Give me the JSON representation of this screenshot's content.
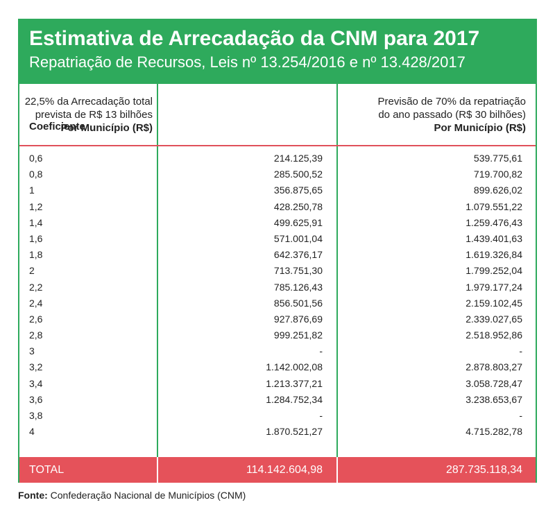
{
  "header": {
    "title": "Estimativa de Arrecadação da CNM para 2017",
    "subtitle": "Repatriação de Recursos, Leis nº 13.254/2016 e nº 13.428/2017"
  },
  "columns": {
    "coef": "Coeficiente",
    "col1_line1": "22,5% da Arrecadação total",
    "col1_line2": "prevista de R$ 13 bilhões",
    "col1_line3": "Por Município (R$)",
    "col2_line1": "Previsão de 70% da repatriação",
    "col2_line2": "do ano passado (R$ 30 bilhões)",
    "col2_line3": "Por Município (R$)"
  },
  "rows": [
    {
      "coef": "0,6",
      "v1": "214.125,39",
      "v2": "539.775,61"
    },
    {
      "coef": "0,8",
      "v1": "285.500,52",
      "v2": "719.700,82"
    },
    {
      "coef": "1",
      "v1": "356.875,65",
      "v2": "899.626,02"
    },
    {
      "coef": "1,2",
      "v1": "428.250,78",
      "v2": "1.079.551,22"
    },
    {
      "coef": "1,4",
      "v1": "499.625,91",
      "v2": "1.259.476,43"
    },
    {
      "coef": "1,6",
      "v1": "571.001,04",
      "v2": "1.439.401,63"
    },
    {
      "coef": "1,8",
      "v1": "642.376,17",
      "v2": "1.619.326,84"
    },
    {
      "coef": "2",
      "v1": "713.751,30",
      "v2": "1.799.252,04"
    },
    {
      "coef": "2,2",
      "v1": "785.126,43",
      "v2": "1.979.177,24"
    },
    {
      "coef": "2,4",
      "v1": "856.501,56",
      "v2": "2.159.102,45"
    },
    {
      "coef": "2,6",
      "v1": "927.876,69",
      "v2": "2.339.027,65"
    },
    {
      "coef": "2,8",
      "v1": "999.251,82",
      "v2": "2.518.952,86"
    },
    {
      "coef": "3",
      "v1": "-",
      "v2": "-"
    },
    {
      "coef": "3,2",
      "v1": "1.142.002,08",
      "v2": "2.878.803,27"
    },
    {
      "coef": "3,4",
      "v1": "1.213.377,21",
      "v2": "3.058.728,47"
    },
    {
      "coef": "3,6",
      "v1": "1.284.752,34",
      "v2": "3.238.653,67"
    },
    {
      "coef": "3,8",
      "v1": "-",
      "v2": "-"
    },
    {
      "coef": "4",
      "v1": "1.870.521,27",
      "v2": "4.715.282,78"
    }
  ],
  "total": {
    "label": "TOTAL",
    "v1": "114.142.604,98",
    "v2": "287.735.118,34"
  },
  "source": {
    "label": "Fonte:",
    "text": "Confederação Nacional de Municípios (CNM)"
  },
  "colors": {
    "header_green": "#2eaa5c",
    "total_red": "#e5525a"
  }
}
